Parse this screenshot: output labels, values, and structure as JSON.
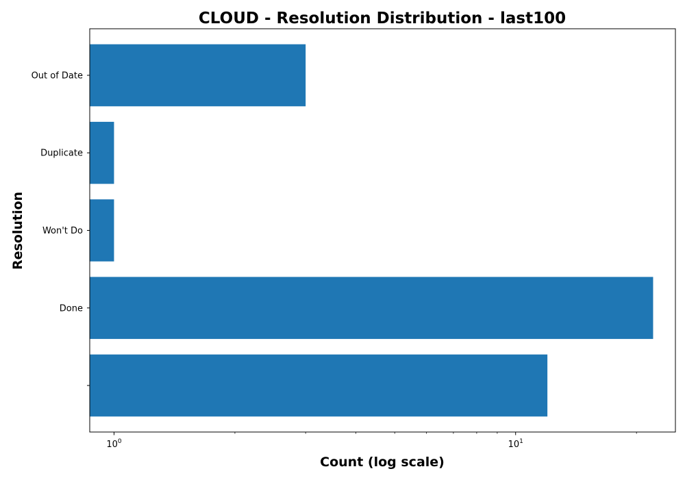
{
  "chart_data": {
    "type": "bar",
    "orientation": "horizontal",
    "title": "CLOUD - Resolution Distribution - last100",
    "xlabel": "Count (log scale)",
    "ylabel": "Resolution",
    "x_scale": "log",
    "xlim": [
      0.87,
      25
    ],
    "x_major_ticks": [
      1,
      10
    ],
    "x_major_tick_labels": [
      {
        "base": "10",
        "exponent": "0"
      },
      {
        "base": "10",
        "exponent": "1"
      }
    ],
    "x_minor_ticks": [
      2,
      3,
      4,
      5,
      6,
      7,
      8,
      9,
      20
    ],
    "categories": [
      "Out of Date",
      "Duplicate",
      "Won't Do",
      "Done",
      ""
    ],
    "values": [
      3,
      1,
      1,
      22,
      12
    ],
    "bar_color": "#1f77b4",
    "grid": false,
    "legend": "none"
  }
}
